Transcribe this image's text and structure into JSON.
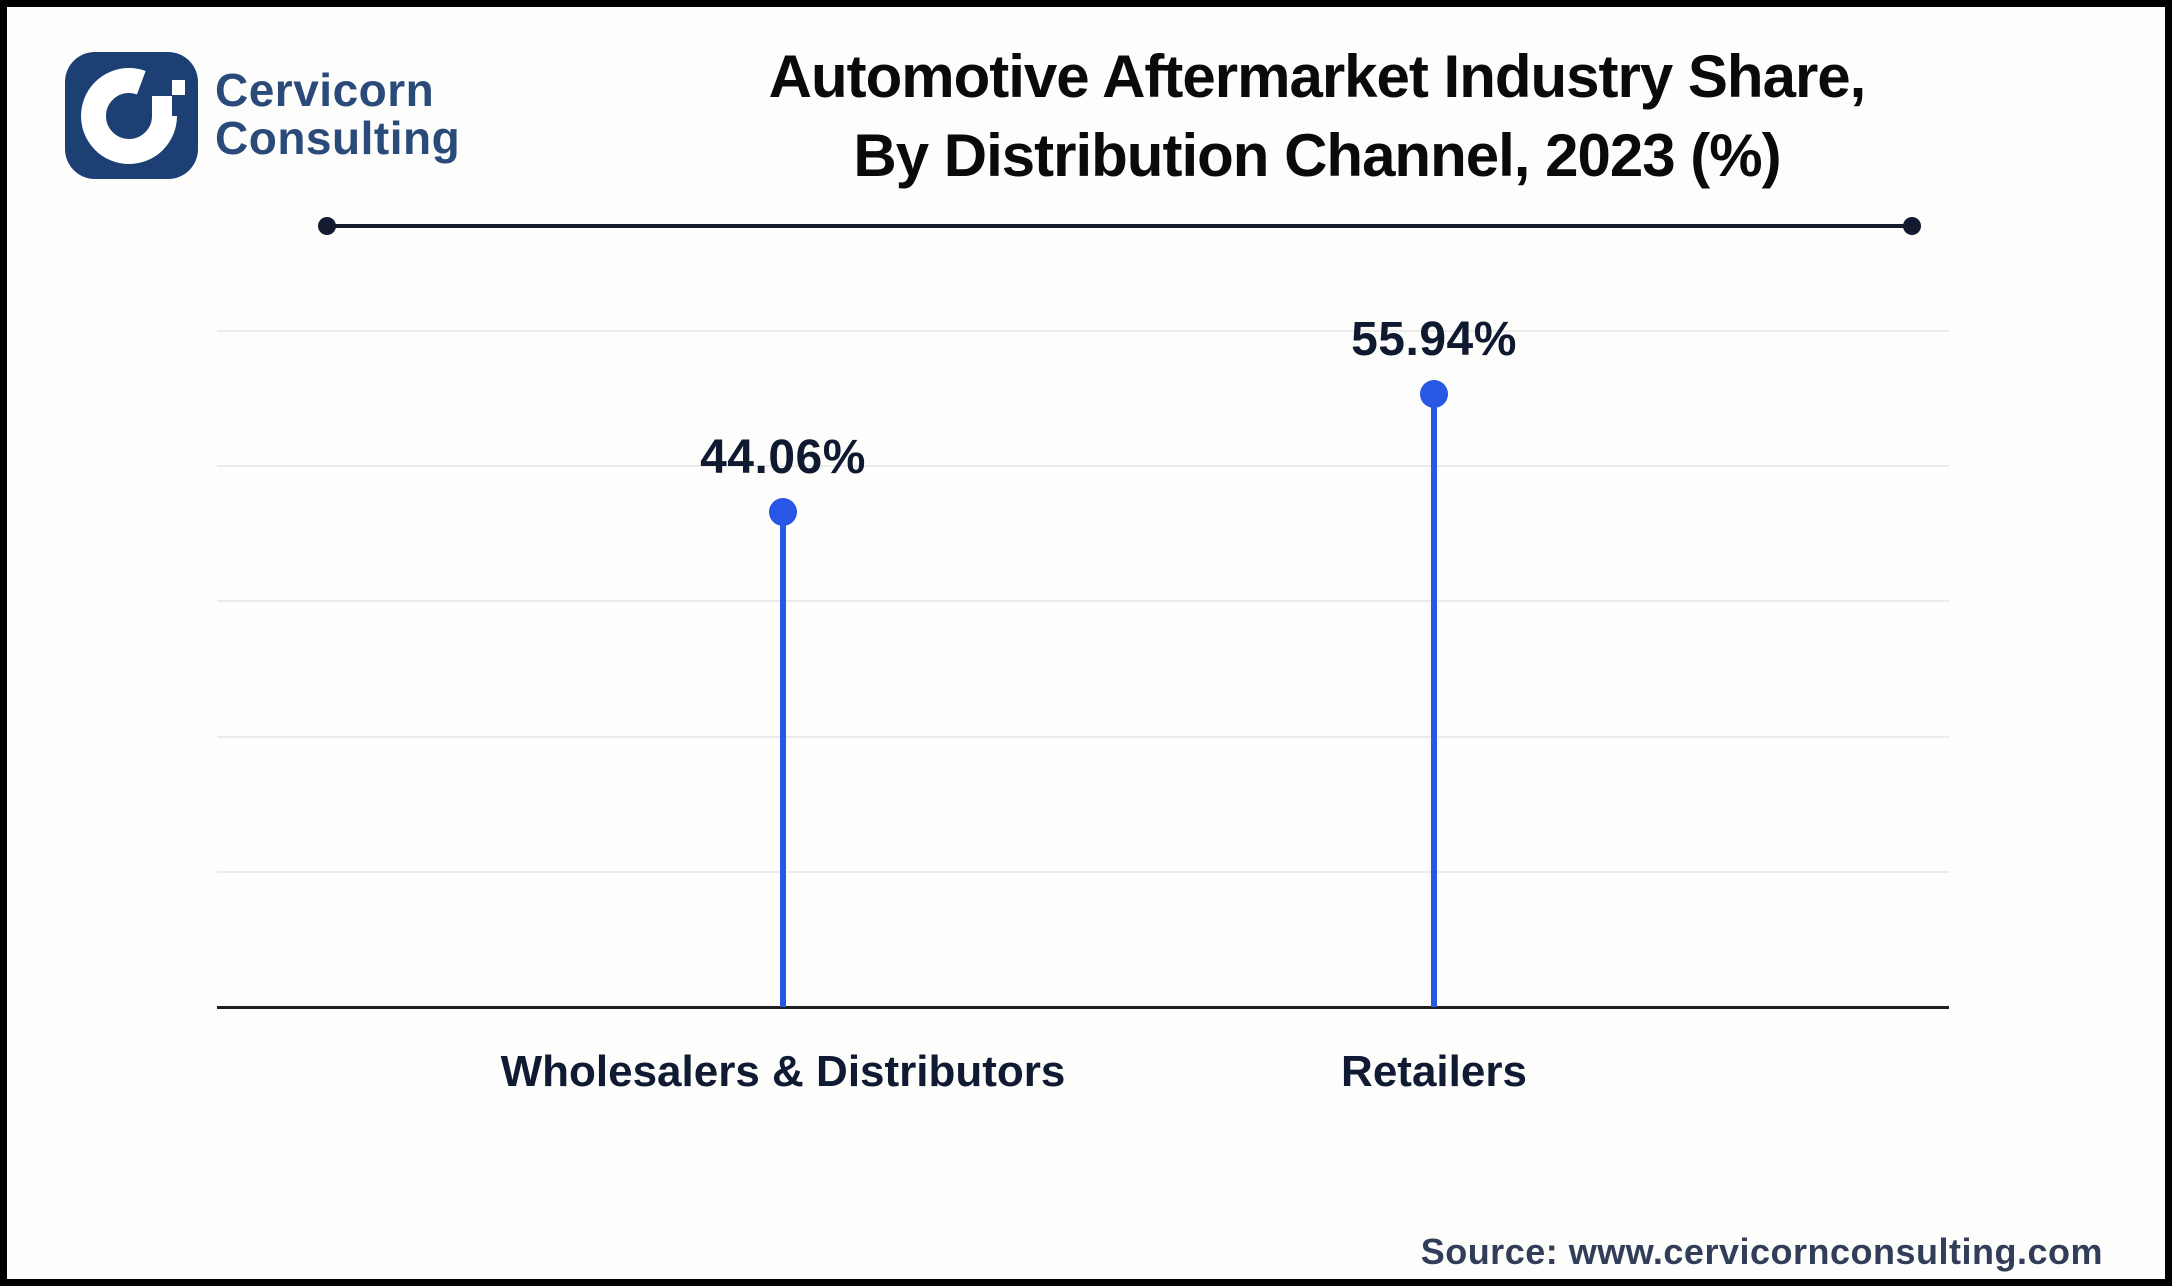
{
  "logo": {
    "brand_line1": "Cervicorn",
    "brand_line2": "Consulting"
  },
  "title": {
    "line1": "Automotive Aftermarket Industry Share,",
    "line2": "By Distribution Channel, 2023 (%)"
  },
  "source": {
    "text": "Source: www.cervicornconsulting.com"
  },
  "colors": {
    "accent_blue": "#2857E6",
    "logo_navy": "#1C3F74",
    "logo_text_blue": "#2A4A7A",
    "title_black": "#0A0A0A",
    "divider_navy": "#141B31",
    "gridline_gray": "#EBEBEB",
    "axis_dark": "#1F1F1F",
    "source_navy": "#323E59"
  },
  "chart_data": {
    "type": "lollipop",
    "title": "Automotive Aftermarket Industry Share, By Distribution Channel, 2023 (%)",
    "categories": [
      "Wholesalers & Distributors",
      "Retailers"
    ],
    "values": [
      44.06,
      55.94
    ],
    "value_labels": [
      "44.06%",
      "55.94%"
    ],
    "unit": "%",
    "xlabel": "",
    "ylabel": "",
    "grid": "horizontal",
    "legend": "none"
  }
}
